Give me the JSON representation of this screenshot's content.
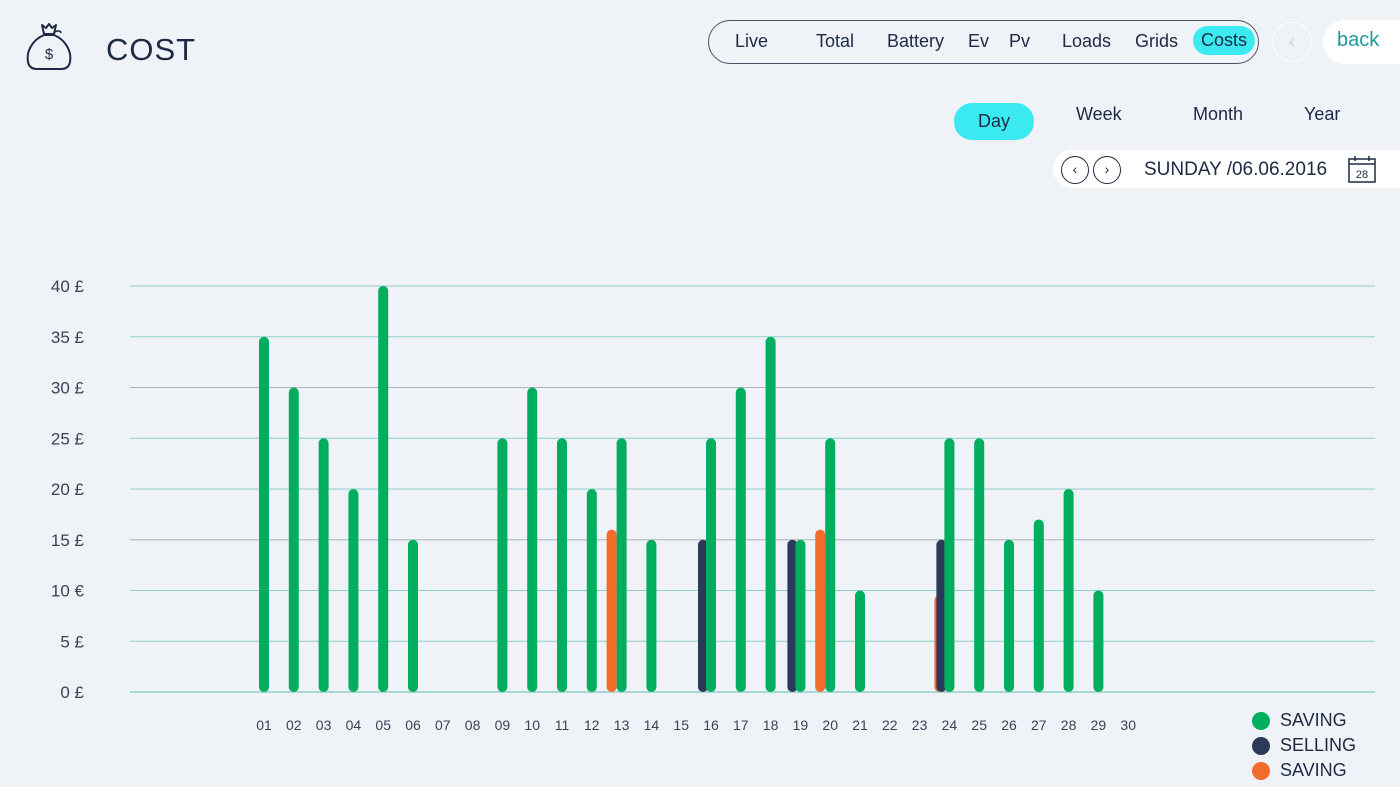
{
  "header": {
    "title": "COST",
    "icon": "money-bag-icon"
  },
  "nav": {
    "items": [
      "Live",
      "Total",
      "Battery",
      "Ev",
      "Pv",
      "Loads",
      "Grids",
      "Costs"
    ],
    "active": "Costs",
    "back_label": "back"
  },
  "periods": {
    "items": [
      "Day",
      "Week",
      "Month",
      "Year"
    ],
    "active": "Day"
  },
  "date": {
    "label": "SUNDAY /06.06.2016",
    "calendar_day": "28"
  },
  "colors": {
    "saving": "#00ae5e",
    "selling": "#2b3a5a",
    "saving_orange": "#f26c2c",
    "accent": "#3aeaf0",
    "grid": "#8ecfcc"
  },
  "chart_data": {
    "type": "bar",
    "categories": [
      "01",
      "02",
      "03",
      "04",
      "05",
      "06",
      "07",
      "08",
      "09",
      "10",
      "11",
      "12",
      "13",
      "14",
      "15",
      "16",
      "17",
      "18",
      "19",
      "20",
      "21",
      "22",
      "23",
      "24",
      "25",
      "26",
      "27",
      "28",
      "29",
      "30"
    ],
    "ytick_labels": [
      "0 £",
      "5 £",
      "10 €",
      "15 £",
      "20 £",
      "25 £",
      "30 £",
      "35 £",
      "40 £"
    ],
    "yticks": [
      0,
      5,
      10,
      15,
      20,
      25,
      30,
      35,
      40
    ],
    "ylim": [
      0,
      40
    ],
    "series": [
      {
        "name": "SAVING",
        "color": "#00ae5e",
        "values": [
          35,
          30,
          25,
          20,
          40,
          15,
          0,
          0,
          25,
          30,
          25,
          20,
          25,
          15,
          0,
          25,
          30,
          35,
          15,
          25,
          10,
          0,
          0,
          25,
          25,
          15,
          17,
          20,
          10,
          0
        ]
      },
      {
        "name": "SELLING",
        "color": "#2b3a5a",
        "values": [
          0,
          0,
          0,
          0,
          0,
          0,
          0,
          0,
          0,
          0,
          0,
          0,
          0,
          0,
          0,
          15,
          0,
          0,
          15,
          0,
          0,
          0,
          0,
          15,
          0,
          0,
          0,
          0,
          0,
          0
        ]
      },
      {
        "name": "SAVING",
        "color": "#f26c2c",
        "values": [
          0,
          0,
          0,
          0,
          0,
          0,
          0,
          0,
          0,
          0,
          0,
          0,
          16,
          0,
          0,
          0,
          0,
          0,
          0,
          16,
          0,
          0,
          0,
          9.5,
          0,
          0,
          0,
          0,
          0,
          0
        ]
      }
    ],
    "legend_position": "bottom-right",
    "grid": true
  }
}
